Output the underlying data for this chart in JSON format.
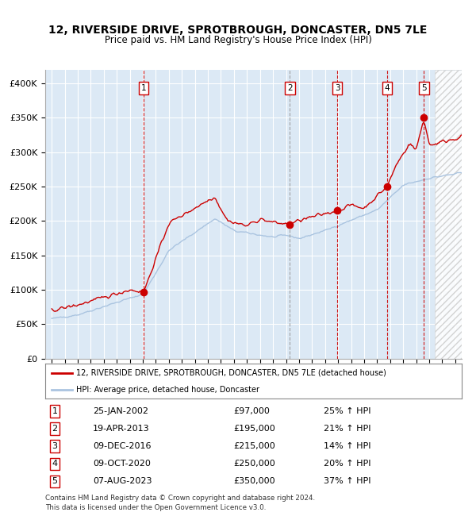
{
  "title_line1": "12, RIVERSIDE DRIVE, SPROTBROUGH, DONCASTER, DN5 7LE",
  "title_line2": "Price paid vs. HM Land Registry's House Price Index (HPI)",
  "ylabel_ticks": [
    "£0",
    "£50K",
    "£100K",
    "£150K",
    "£200K",
    "£250K",
    "£300K",
    "£350K",
    "£400K"
  ],
  "ylabel_values": [
    0,
    50000,
    100000,
    150000,
    200000,
    250000,
    300000,
    350000,
    400000
  ],
  "xlim": [
    1994.5,
    2026.5
  ],
  "ylim": [
    0,
    420000
  ],
  "background_color": "#dce9f5",
  "grid_color": "#ffffff",
  "hpi_line_color": "#aac4e0",
  "price_line_color": "#cc0000",
  "sale_marker_color": "#cc0000",
  "transactions": [
    {
      "num": 1,
      "date": "25-JAN-2002",
      "year": 2002.07,
      "price": 97000,
      "vline_color": "#cc0000"
    },
    {
      "num": 2,
      "date": "19-APR-2013",
      "year": 2013.29,
      "price": 195000,
      "vline_color": "#999999"
    },
    {
      "num": 3,
      "date": "09-DEC-2016",
      "year": 2016.94,
      "price": 215000,
      "vline_color": "#cc0000"
    },
    {
      "num": 4,
      "date": "09-OCT-2020",
      "year": 2020.77,
      "price": 250000,
      "vline_color": "#cc0000"
    },
    {
      "num": 5,
      "date": "07-AUG-2023",
      "year": 2023.6,
      "price": 350000,
      "vline_color": "#cc0000"
    }
  ],
  "legend_label_red": "12, RIVERSIDE DRIVE, SPROTBROUGH, DONCASTER, DN5 7LE (detached house)",
  "legend_label_blue": "HPI: Average price, detached house, Doncaster",
  "footnote": "Contains HM Land Registry data © Crown copyright and database right 2024.\nThis data is licensed under the Open Government Licence v3.0.",
  "table_rows": [
    [
      "1",
      "25-JAN-2002",
      "£97,000",
      "25% ↑ HPI"
    ],
    [
      "2",
      "19-APR-2013",
      "£195,000",
      "21% ↑ HPI"
    ],
    [
      "3",
      "09-DEC-2016",
      "£215,000",
      "14% ↑ HPI"
    ],
    [
      "4",
      "09-OCT-2020",
      "£250,000",
      "20% ↑ HPI"
    ],
    [
      "5",
      "07-AUG-2023",
      "£350,000",
      "37% ↑ HPI"
    ]
  ]
}
